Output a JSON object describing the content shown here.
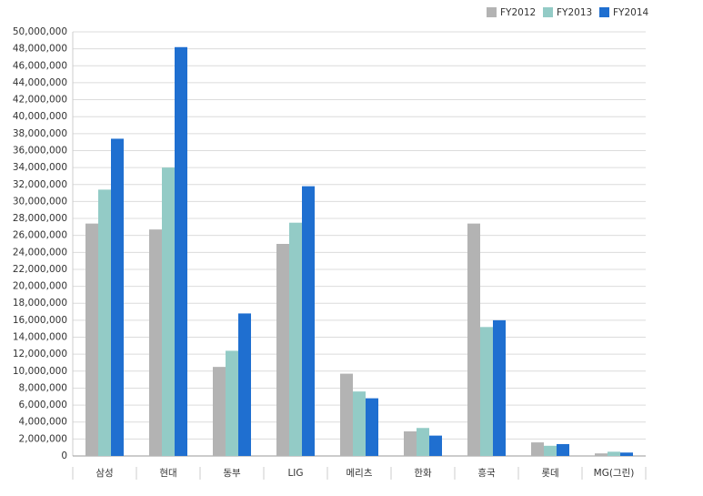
{
  "chart_data": {
    "type": "bar",
    "categories": [
      "삼성",
      "현대",
      "동부",
      "LIG",
      "메리츠",
      "한화",
      "흥국",
      "롯데",
      "MG(그린)"
    ],
    "series": [
      {
        "name": "FY2012",
        "color": "#b3b3b3",
        "values": [
          27400000,
          26700000,
          10500000,
          25000000,
          9700000,
          2900000,
          27400000,
          1600000,
          300000
        ]
      },
      {
        "name": "FY2013",
        "color": "#93cbc6",
        "values": [
          31400000,
          34000000,
          12400000,
          27500000,
          7600000,
          3300000,
          15200000,
          1200000,
          500000
        ]
      },
      {
        "name": "FY2014",
        "color": "#1f6fd0",
        "values": [
          37400000,
          48200000,
          16800000,
          31800000,
          6800000,
          2400000,
          16000000,
          1400000,
          400000
        ]
      }
    ],
    "ylim": [
      0,
      50000000
    ],
    "yticks": [
      0,
      {
        "value": 2000000,
        "label": "2,000,000"
      },
      {
        "value": 4000000,
        "label": "4,000,000"
      },
      {
        "value": 6000000,
        "label": "6,000,000"
      },
      {
        "value": 8000000,
        "label": "8,000,000"
      },
      {
        "value": 10000000,
        "label": "10,000,000"
      },
      {
        "value": 12000000,
        "label": "12,000,000"
      },
      {
        "value": 14000000,
        "label": "14,000,000"
      },
      {
        "value": 16000000,
        "label": "16,000,000"
      },
      {
        "value": 18000000,
        "label": "18,000,000"
      },
      {
        "value": 20000000,
        "label": "20,000,000"
      },
      {
        "value": 22000000,
        "label": "22,000,000"
      },
      {
        "value": 24000000,
        "label": "24,000,000"
      },
      {
        "value": 26000000,
        "label": "26,000,000"
      },
      {
        "value": 28000000,
        "label": "28,000,000"
      },
      {
        "value": 30000000,
        "label": "30,000,000"
      },
      {
        "value": 32000000,
        "label": "32,000,000"
      },
      {
        "value": 34000000,
        "label": "34,000,000"
      },
      {
        "value": 36000000,
        "label": "36,000,000"
      },
      {
        "value": 38000000,
        "label": "38,000,000"
      },
      {
        "value": 40000000,
        "label": "40,000,000"
      },
      {
        "value": 42000000,
        "label": "42,000,000"
      },
      {
        "value": 44000000,
        "label": "44,000,000"
      },
      {
        "value": 46000000,
        "label": "46,000,000"
      },
      {
        "value": 48000000,
        "label": "48,000,000"
      },
      {
        "value": 50000000,
        "label": "50,000,000"
      }
    ],
    "grid": true,
    "legend": "top-right"
  }
}
